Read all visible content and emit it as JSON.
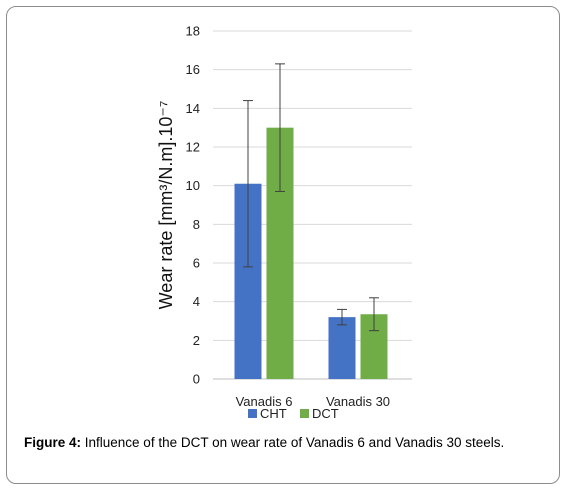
{
  "chart_data": {
    "type": "bar",
    "categories": [
      "Vanadis 6",
      "Vanadis 30"
    ],
    "series": [
      {
        "name": "CHT",
        "values": [
          10.1,
          3.2
        ],
        "error": [
          4.3,
          0.4
        ],
        "color": "#4472c4"
      },
      {
        "name": "DCT",
        "values": [
          13.0,
          3.35
        ],
        "error": [
          3.3,
          0.85
        ],
        "color": "#70ad47"
      }
    ],
    "ylabel": "Wear rate [mm³/N.m].10⁻⁷",
    "ylim": [
      0,
      18
    ],
    "yticks": [
      0,
      2,
      4,
      6,
      8,
      10,
      12,
      14,
      16,
      18
    ],
    "grid": true,
    "legend_position": "bottom"
  },
  "caption": {
    "prefix": "Figure 4:",
    "text": " Influence of the DCT on wear rate of Vanadis 6 and Vanadis 30 steels."
  }
}
